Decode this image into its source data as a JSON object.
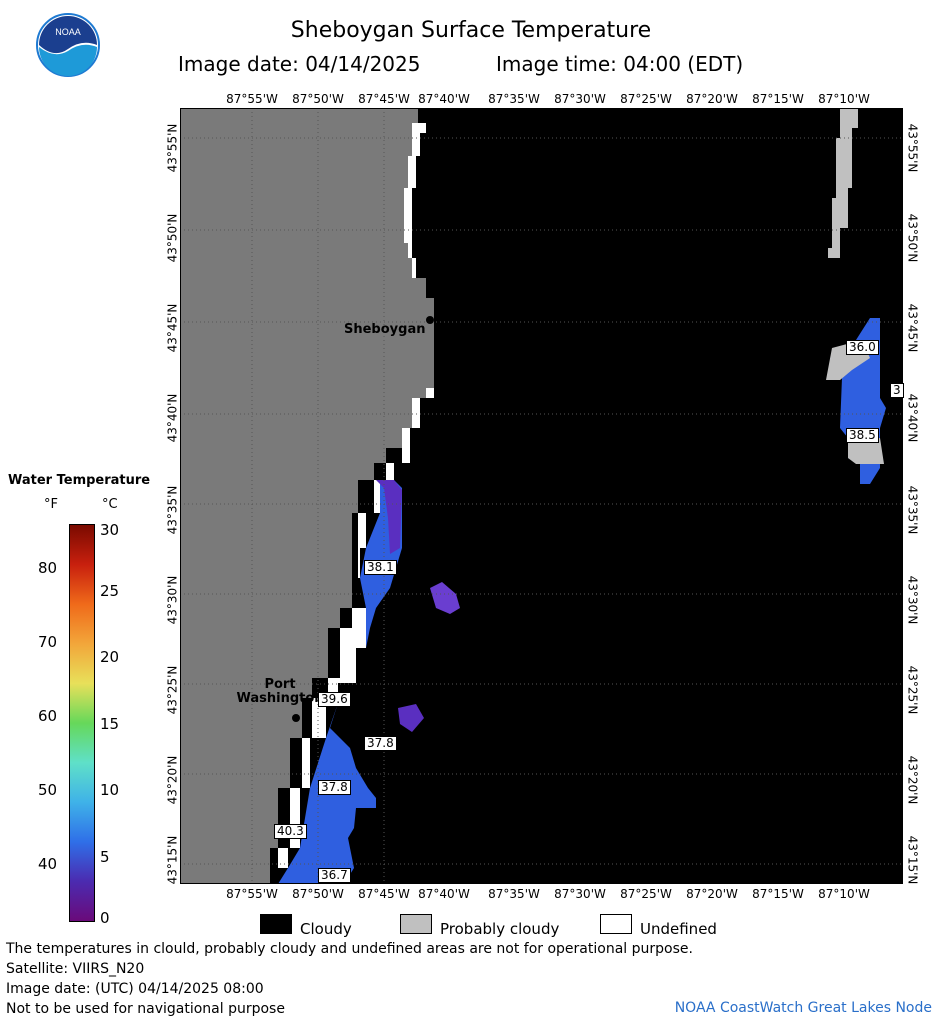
{
  "title": "Sheboygan Surface Temperature",
  "image_date_label": "Image date: 04/14/2025",
  "image_time_label": "Image time: 04:00 (EDT)",
  "longitude_labels": [
    "87°55'W",
    "87°50'W",
    "87°45'W",
    "87°40'W",
    "87°35'W",
    "87°30'W",
    "87°25'W",
    "87°20'W",
    "87°15'W",
    "87°10'W"
  ],
  "latitude_labels": [
    "43°55'N",
    "43°50'N",
    "43°45'N",
    "43°40'N",
    "43°35'N",
    "43°30'N",
    "43°25'N",
    "43°20'N",
    "43°15'N"
  ],
  "legend": {
    "title": "Water Temperature",
    "unit_f": "°F",
    "unit_c": "°C",
    "f_ticks": [
      "80",
      "70",
      "60",
      "50",
      "40"
    ],
    "c_ticks": [
      "30",
      "25",
      "20",
      "15",
      "10",
      "5",
      "0"
    ],
    "colors": [
      "#6a0a7a",
      "#4b2bb0",
      "#2f6fe8",
      "#3fb2e8",
      "#5fe0c8",
      "#66d85a",
      "#e8e05a",
      "#f2a63a",
      "#f06a1a",
      "#c8200e",
      "#7a0a00"
    ]
  },
  "places": {
    "sheboygan": "Sheboygan",
    "port_washington_1": "Port",
    "port_washington_2": "Washington"
  },
  "temperature_labels": [
    "36.0",
    "3",
    "38.5",
    "38.1",
    "39.6",
    "37.8",
    "37.8",
    "40.3",
    "36.7"
  ],
  "key": {
    "cloudy": "Cloudy",
    "probably_cloudy": "Probably cloudy",
    "undefined": "Undefined"
  },
  "footer": {
    "disclaimer": "The temperatures in clould, probably cloudy and undefined areas are not for operational purpose.",
    "satellite": "Satellite: VIIRS_N20",
    "utc_date": "Image date: (UTC) 04/14/2025  08:00",
    "navigation": "Not to be used for navigational purpose",
    "credit": "NOAA CoastWatch Great Lakes Node"
  },
  "colors": {
    "land": "#7a7a7a",
    "cloud": "#000000",
    "probably_cloud": "#c0c0c0",
    "undefined": "#ffffff",
    "noaa_blue": "#1e7ad2"
  }
}
